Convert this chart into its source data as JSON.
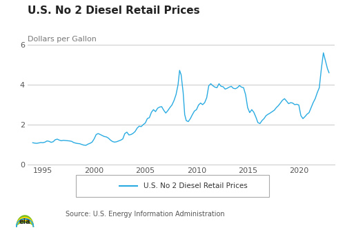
{
  "title": "U.S. No 2 Diesel Retail Prices",
  "ylabel": "Dollars per Gallon",
  "source_text": "Source: U.S. Energy Information Administration",
  "legend_label": "U.S. No 2 Diesel Retail Prices",
  "line_color": "#29ABE2",
  "background_color": "#ffffff",
  "grid_color": "#c8c8c8",
  "ylim": [
    0,
    6
  ],
  "yticks": [
    0,
    2,
    4,
    6
  ],
  "title_fontsize": 11,
  "ylabel_fontsize": 8,
  "tick_fontsize": 8,
  "prices": [
    [
      1994.0,
      1.09
    ],
    [
      1994.2,
      1.07
    ],
    [
      1994.4,
      1.06
    ],
    [
      1994.6,
      1.08
    ],
    [
      1994.8,
      1.1
    ],
    [
      1995.0,
      1.09
    ],
    [
      1995.2,
      1.12
    ],
    [
      1995.4,
      1.18
    ],
    [
      1995.6,
      1.16
    ],
    [
      1995.8,
      1.11
    ],
    [
      1996.0,
      1.14
    ],
    [
      1996.2,
      1.24
    ],
    [
      1996.4,
      1.27
    ],
    [
      1996.6,
      1.22
    ],
    [
      1996.8,
      1.19
    ],
    [
      1997.0,
      1.21
    ],
    [
      1997.2,
      1.2
    ],
    [
      1997.4,
      1.19
    ],
    [
      1997.6,
      1.18
    ],
    [
      1997.8,
      1.16
    ],
    [
      1998.0,
      1.1
    ],
    [
      1998.2,
      1.07
    ],
    [
      1998.4,
      1.05
    ],
    [
      1998.6,
      1.04
    ],
    [
      1998.8,
      1.0
    ],
    [
      1999.0,
      0.97
    ],
    [
      1999.2,
      0.96
    ],
    [
      1999.4,
      1.02
    ],
    [
      1999.6,
      1.06
    ],
    [
      1999.8,
      1.12
    ],
    [
      2000.0,
      1.28
    ],
    [
      2000.2,
      1.5
    ],
    [
      2000.4,
      1.55
    ],
    [
      2000.6,
      1.5
    ],
    [
      2000.8,
      1.45
    ],
    [
      2001.0,
      1.4
    ],
    [
      2001.2,
      1.38
    ],
    [
      2001.4,
      1.32
    ],
    [
      2001.6,
      1.22
    ],
    [
      2001.8,
      1.15
    ],
    [
      2002.0,
      1.12
    ],
    [
      2002.2,
      1.14
    ],
    [
      2002.4,
      1.18
    ],
    [
      2002.6,
      1.22
    ],
    [
      2002.8,
      1.28
    ],
    [
      2003.0,
      1.55
    ],
    [
      2003.2,
      1.62
    ],
    [
      2003.4,
      1.48
    ],
    [
      2003.6,
      1.5
    ],
    [
      2003.8,
      1.56
    ],
    [
      2004.0,
      1.65
    ],
    [
      2004.2,
      1.82
    ],
    [
      2004.4,
      1.92
    ],
    [
      2004.6,
      1.9
    ],
    [
      2004.8,
      2.0
    ],
    [
      2005.0,
      2.08
    ],
    [
      2005.2,
      2.3
    ],
    [
      2005.4,
      2.35
    ],
    [
      2005.6,
      2.62
    ],
    [
      2005.8,
      2.75
    ],
    [
      2006.0,
      2.65
    ],
    [
      2006.2,
      2.82
    ],
    [
      2006.4,
      2.88
    ],
    [
      2006.6,
      2.9
    ],
    [
      2006.8,
      2.72
    ],
    [
      2007.0,
      2.58
    ],
    [
      2007.2,
      2.7
    ],
    [
      2007.4,
      2.85
    ],
    [
      2007.6,
      2.98
    ],
    [
      2007.8,
      3.2
    ],
    [
      2008.0,
      3.5
    ],
    [
      2008.2,
      4.0
    ],
    [
      2008.35,
      4.72
    ],
    [
      2008.5,
      4.5
    ],
    [
      2008.7,
      3.6
    ],
    [
      2008.85,
      2.5
    ],
    [
      2009.0,
      2.2
    ],
    [
      2009.2,
      2.15
    ],
    [
      2009.4,
      2.3
    ],
    [
      2009.6,
      2.5
    ],
    [
      2009.8,
      2.68
    ],
    [
      2010.0,
      2.75
    ],
    [
      2010.2,
      2.98
    ],
    [
      2010.4,
      3.08
    ],
    [
      2010.6,
      3.0
    ],
    [
      2010.8,
      3.1
    ],
    [
      2011.0,
      3.35
    ],
    [
      2011.2,
      3.95
    ],
    [
      2011.4,
      4.05
    ],
    [
      2011.6,
      3.95
    ],
    [
      2011.8,
      3.88
    ],
    [
      2012.0,
      3.85
    ],
    [
      2012.2,
      4.05
    ],
    [
      2012.4,
      3.92
    ],
    [
      2012.6,
      3.9
    ],
    [
      2012.8,
      3.78
    ],
    [
      2013.0,
      3.82
    ],
    [
      2013.2,
      3.88
    ],
    [
      2013.4,
      3.92
    ],
    [
      2013.6,
      3.82
    ],
    [
      2013.8,
      3.8
    ],
    [
      2014.0,
      3.85
    ],
    [
      2014.2,
      3.96
    ],
    [
      2014.4,
      3.88
    ],
    [
      2014.6,
      3.85
    ],
    [
      2014.8,
      3.5
    ],
    [
      2015.0,
      2.85
    ],
    [
      2015.2,
      2.6
    ],
    [
      2015.4,
      2.75
    ],
    [
      2015.6,
      2.62
    ],
    [
      2015.8,
      2.38
    ],
    [
      2016.0,
      2.1
    ],
    [
      2016.2,
      2.05
    ],
    [
      2016.4,
      2.2
    ],
    [
      2016.6,
      2.3
    ],
    [
      2016.8,
      2.45
    ],
    [
      2017.0,
      2.52
    ],
    [
      2017.2,
      2.58
    ],
    [
      2017.4,
      2.65
    ],
    [
      2017.6,
      2.72
    ],
    [
      2017.8,
      2.85
    ],
    [
      2018.0,
      2.95
    ],
    [
      2018.2,
      3.08
    ],
    [
      2018.4,
      3.22
    ],
    [
      2018.6,
      3.3
    ],
    [
      2018.8,
      3.18
    ],
    [
      2019.0,
      3.05
    ],
    [
      2019.2,
      3.1
    ],
    [
      2019.4,
      3.08
    ],
    [
      2019.6,
      3.0
    ],
    [
      2019.8,
      3.02
    ],
    [
      2020.0,
      2.98
    ],
    [
      2020.2,
      2.45
    ],
    [
      2020.4,
      2.3
    ],
    [
      2020.6,
      2.4
    ],
    [
      2020.8,
      2.52
    ],
    [
      2021.0,
      2.6
    ],
    [
      2021.2,
      2.85
    ],
    [
      2021.4,
      3.1
    ],
    [
      2021.6,
      3.3
    ],
    [
      2021.8,
      3.6
    ],
    [
      2022.0,
      3.85
    ],
    [
      2022.2,
      4.8
    ],
    [
      2022.4,
      5.6
    ],
    [
      2022.6,
      5.2
    ],
    [
      2022.8,
      4.8
    ],
    [
      2022.95,
      4.6
    ]
  ],
  "xticks": [
    1995,
    2000,
    2005,
    2010,
    2015,
    2020
  ],
  "xlim": [
    1993.5,
    2023.5
  ]
}
